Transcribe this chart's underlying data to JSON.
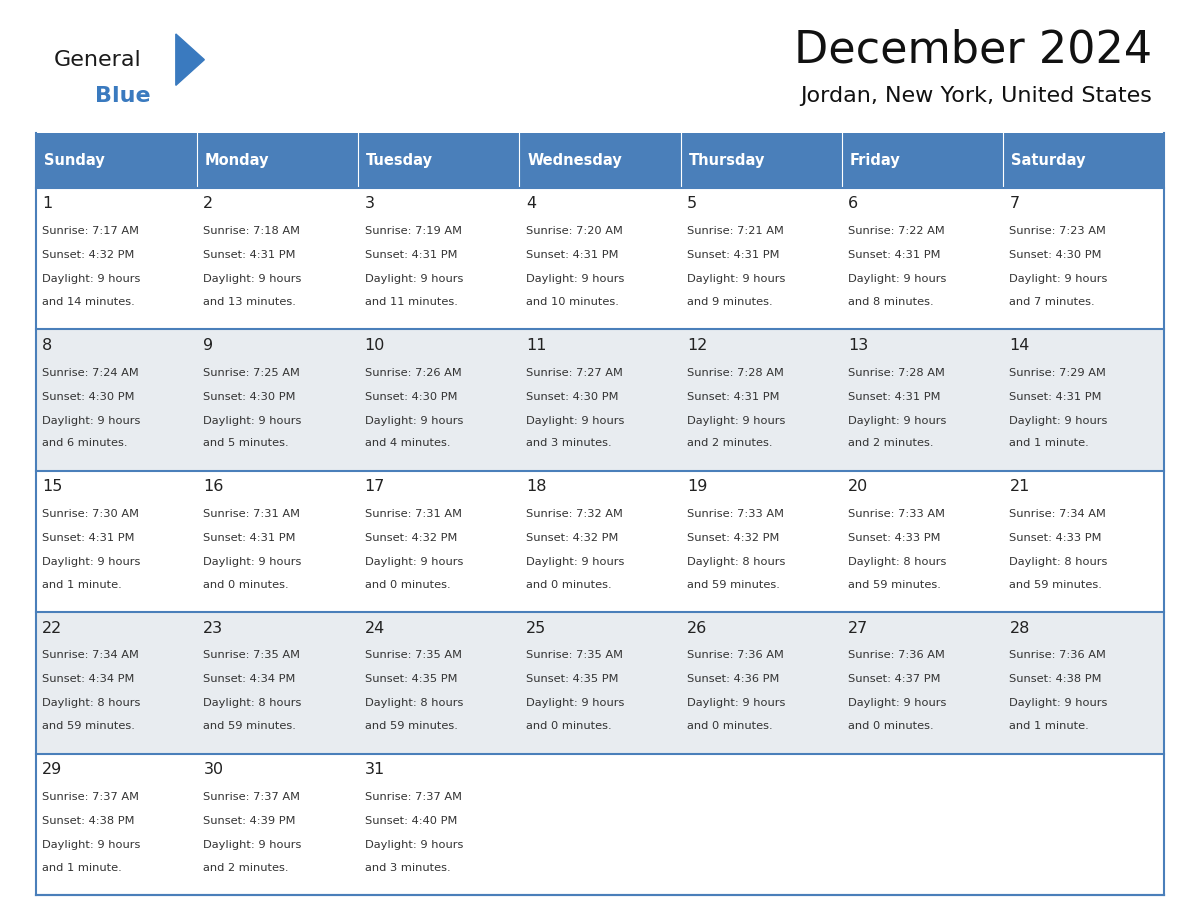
{
  "title": "December 2024",
  "subtitle": "Jordan, New York, United States",
  "days_of_week": [
    "Sunday",
    "Monday",
    "Tuesday",
    "Wednesday",
    "Thursday",
    "Friday",
    "Saturday"
  ],
  "header_bg": "#4a7fba",
  "header_text_color": "#ffffff",
  "row_bg_white": "#ffffff",
  "row_bg_gray": "#e8ecf0",
  "cell_border_color": "#4a7fba",
  "day_num_color": "#222222",
  "cell_text_color": "#333333",
  "logo_general_color": "#1a1a1a",
  "logo_blue_color": "#3a7abf",
  "title_color": "#111111",
  "calendar_data": [
    [
      {
        "day": "1",
        "sunrise": "7:17 AM",
        "sunset": "4:32 PM",
        "daylight_line1": "Daylight: 9 hours",
        "daylight_line2": "and 14 minutes."
      },
      {
        "day": "2",
        "sunrise": "7:18 AM",
        "sunset": "4:31 PM",
        "daylight_line1": "Daylight: 9 hours",
        "daylight_line2": "and 13 minutes."
      },
      {
        "day": "3",
        "sunrise": "7:19 AM",
        "sunset": "4:31 PM",
        "daylight_line1": "Daylight: 9 hours",
        "daylight_line2": "and 11 minutes."
      },
      {
        "day": "4",
        "sunrise": "7:20 AM",
        "sunset": "4:31 PM",
        "daylight_line1": "Daylight: 9 hours",
        "daylight_line2": "and 10 minutes."
      },
      {
        "day": "5",
        "sunrise": "7:21 AM",
        "sunset": "4:31 PM",
        "daylight_line1": "Daylight: 9 hours",
        "daylight_line2": "and 9 minutes."
      },
      {
        "day": "6",
        "sunrise": "7:22 AM",
        "sunset": "4:31 PM",
        "daylight_line1": "Daylight: 9 hours",
        "daylight_line2": "and 8 minutes."
      },
      {
        "day": "7",
        "sunrise": "7:23 AM",
        "sunset": "4:30 PM",
        "daylight_line1": "Daylight: 9 hours",
        "daylight_line2": "and 7 minutes."
      }
    ],
    [
      {
        "day": "8",
        "sunrise": "7:24 AM",
        "sunset": "4:30 PM",
        "daylight_line1": "Daylight: 9 hours",
        "daylight_line2": "and 6 minutes."
      },
      {
        "day": "9",
        "sunrise": "7:25 AM",
        "sunset": "4:30 PM",
        "daylight_line1": "Daylight: 9 hours",
        "daylight_line2": "and 5 minutes."
      },
      {
        "day": "10",
        "sunrise": "7:26 AM",
        "sunset": "4:30 PM",
        "daylight_line1": "Daylight: 9 hours",
        "daylight_line2": "and 4 minutes."
      },
      {
        "day": "11",
        "sunrise": "7:27 AM",
        "sunset": "4:30 PM",
        "daylight_line1": "Daylight: 9 hours",
        "daylight_line2": "and 3 minutes."
      },
      {
        "day": "12",
        "sunrise": "7:28 AM",
        "sunset": "4:31 PM",
        "daylight_line1": "Daylight: 9 hours",
        "daylight_line2": "and 2 minutes."
      },
      {
        "day": "13",
        "sunrise": "7:28 AM",
        "sunset": "4:31 PM",
        "daylight_line1": "Daylight: 9 hours",
        "daylight_line2": "and 2 minutes."
      },
      {
        "day": "14",
        "sunrise": "7:29 AM",
        "sunset": "4:31 PM",
        "daylight_line1": "Daylight: 9 hours",
        "daylight_line2": "and 1 minute."
      }
    ],
    [
      {
        "day": "15",
        "sunrise": "7:30 AM",
        "sunset": "4:31 PM",
        "daylight_line1": "Daylight: 9 hours",
        "daylight_line2": "and 1 minute."
      },
      {
        "day": "16",
        "sunrise": "7:31 AM",
        "sunset": "4:31 PM",
        "daylight_line1": "Daylight: 9 hours",
        "daylight_line2": "and 0 minutes."
      },
      {
        "day": "17",
        "sunrise": "7:31 AM",
        "sunset": "4:32 PM",
        "daylight_line1": "Daylight: 9 hours",
        "daylight_line2": "and 0 minutes."
      },
      {
        "day": "18",
        "sunrise": "7:32 AM",
        "sunset": "4:32 PM",
        "daylight_line1": "Daylight: 9 hours",
        "daylight_line2": "and 0 minutes."
      },
      {
        "day": "19",
        "sunrise": "7:33 AM",
        "sunset": "4:32 PM",
        "daylight_line1": "Daylight: 8 hours",
        "daylight_line2": "and 59 minutes."
      },
      {
        "day": "20",
        "sunrise": "7:33 AM",
        "sunset": "4:33 PM",
        "daylight_line1": "Daylight: 8 hours",
        "daylight_line2": "and 59 minutes."
      },
      {
        "day": "21",
        "sunrise": "7:34 AM",
        "sunset": "4:33 PM",
        "daylight_line1": "Daylight: 8 hours",
        "daylight_line2": "and 59 minutes."
      }
    ],
    [
      {
        "day": "22",
        "sunrise": "7:34 AM",
        "sunset": "4:34 PM",
        "daylight_line1": "Daylight: 8 hours",
        "daylight_line2": "and 59 minutes."
      },
      {
        "day": "23",
        "sunrise": "7:35 AM",
        "sunset": "4:34 PM",
        "daylight_line1": "Daylight: 8 hours",
        "daylight_line2": "and 59 minutes."
      },
      {
        "day": "24",
        "sunrise": "7:35 AM",
        "sunset": "4:35 PM",
        "daylight_line1": "Daylight: 8 hours",
        "daylight_line2": "and 59 minutes."
      },
      {
        "day": "25",
        "sunrise": "7:35 AM",
        "sunset": "4:35 PM",
        "daylight_line1": "Daylight: 9 hours",
        "daylight_line2": "and 0 minutes."
      },
      {
        "day": "26",
        "sunrise": "7:36 AM",
        "sunset": "4:36 PM",
        "daylight_line1": "Daylight: 9 hours",
        "daylight_line2": "and 0 minutes."
      },
      {
        "day": "27",
        "sunrise": "7:36 AM",
        "sunset": "4:37 PM",
        "daylight_line1": "Daylight: 9 hours",
        "daylight_line2": "and 0 minutes."
      },
      {
        "day": "28",
        "sunrise": "7:36 AM",
        "sunset": "4:38 PM",
        "daylight_line1": "Daylight: 9 hours",
        "daylight_line2": "and 1 minute."
      }
    ],
    [
      {
        "day": "29",
        "sunrise": "7:37 AM",
        "sunset": "4:38 PM",
        "daylight_line1": "Daylight: 9 hours",
        "daylight_line2": "and 1 minute."
      },
      {
        "day": "30",
        "sunrise": "7:37 AM",
        "sunset": "4:39 PM",
        "daylight_line1": "Daylight: 9 hours",
        "daylight_line2": "and 2 minutes."
      },
      {
        "day": "31",
        "sunrise": "7:37 AM",
        "sunset": "4:40 PM",
        "daylight_line1": "Daylight: 9 hours",
        "daylight_line2": "and 3 minutes."
      },
      null,
      null,
      null,
      null
    ]
  ],
  "row_bg_pattern": [
    0,
    1,
    0,
    1,
    0
  ]
}
